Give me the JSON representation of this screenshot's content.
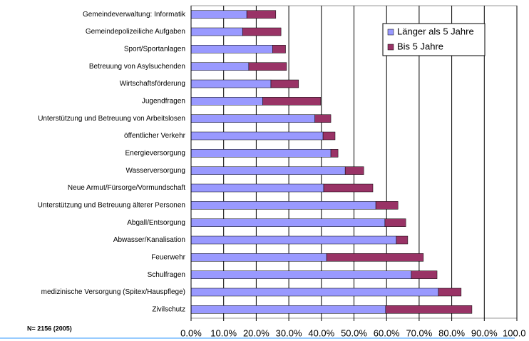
{
  "chart_data": {
    "type": "stacked-barh",
    "note": "N= 2156 (2005)",
    "categories": [
      "Gemeindeverwaltung: Informatik",
      "Gemeindepolizeiliche Aufgaben",
      "Sport/Sportanlagen",
      "Betreuung von Asylsuchenden",
      "Wirtschaftsförderung",
      "Jugendfragen",
      "Unterstützung und Betreuung von Arbeitslosen",
      "öffentlicher Verkehr",
      "Energieversorgung",
      "Wasserversorgung",
      "Neue Armut/Fürsorge/Vormundschaft",
      "Unterstützung und Betreuung älterer Personen",
      "Abgall/Entsorgung",
      "Abwasser/Kanalisation",
      "Feuerwehr",
      "Schulfragen",
      "medizinische Versorgung (Spitex/Hauspflege)",
      "Zivilschutz"
    ],
    "series": [
      {
        "name": "Länger als 5 Jahre",
        "color": "#9999ff",
        "values": [
          17.1,
          15.8,
          25,
          17.7,
          24.5,
          22,
          38,
          40.5,
          42.9,
          47.3,
          40.7,
          56.7,
          59.5,
          63,
          41.6,
          67.6,
          75.9,
          59.7
        ]
      },
      {
        "name": "Bis 5 Jahre",
        "color": "#993366",
        "values": [
          8.9,
          11.8,
          4,
          11.6,
          8.5,
          17.8,
          4.9,
          3.7,
          2.2,
          5.7,
          15.1,
          6.8,
          6.4,
          3.5,
          29.7,
          7.9,
          7,
          26.5
        ]
      }
    ],
    "xlim": [
      0,
      100
    ],
    "xticks": [
      {
        "value": 0,
        "label": "0.0%"
      },
      {
        "value": 10,
        "label": "10.0%"
      },
      {
        "value": 20,
        "label": "20.0%"
      },
      {
        "value": 30,
        "label": "30.0%"
      },
      {
        "value": 40,
        "label": "40.0%"
      },
      {
        "value": 50,
        "label": "50.0%"
      },
      {
        "value": 60,
        "label": "60.0%"
      },
      {
        "value": 70,
        "label": "70.0%"
      },
      {
        "value": 80,
        "label": "80.0%"
      },
      {
        "value": 90,
        "label": "90.0%"
      },
      {
        "value": 100,
        "label": "100.0"
      }
    ],
    "grid": true,
    "legend": "upper right"
  }
}
